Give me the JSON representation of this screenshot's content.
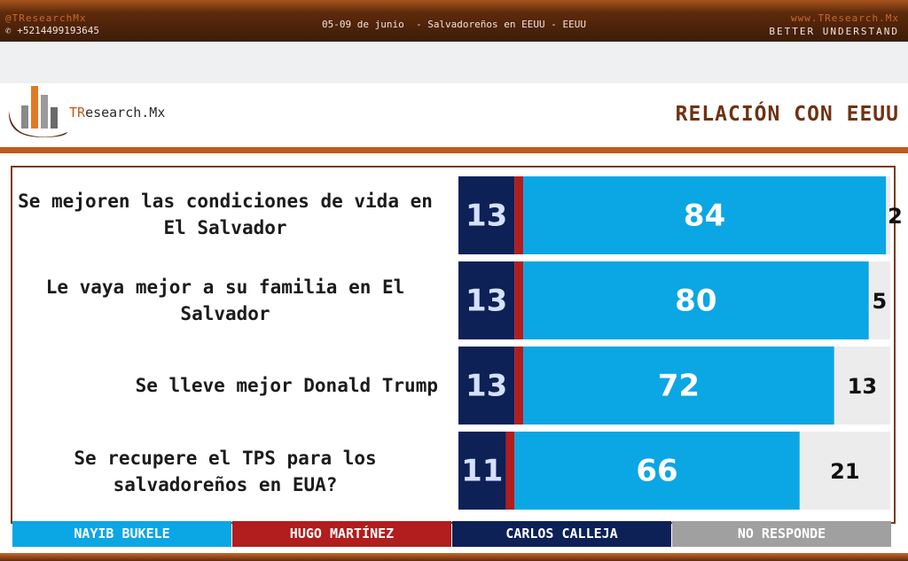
{
  "header": {
    "handle": "@TResearchMx",
    "phone": "+5214499193645",
    "center_text": "05-09 de junio  - Salvadoreños en EEUU - EEUU",
    "website": "www.TResearch.Mx",
    "tagline": "BETTER UNDERSTAND"
  },
  "brand": {
    "logo_prefix": "TR",
    "logo_suffix": "esearch.Mx"
  },
  "section_title": "RELACIÓN CON EEUU",
  "chart_data": {
    "type": "bar",
    "orientation": "horizontal",
    "stacked": true,
    "normalized_to": 100,
    "categories": [
      "Se mejoren las condiciones de vida en El Salvador",
      "Le vaya mejor a su familia en El Salvador",
      "Se lleve mejor Donald Trump",
      "Se recupere el TPS para los salvadoreños en EUA?"
    ],
    "series": [
      {
        "name": "CARLOS CALLEJA",
        "color": "#0d2157",
        "values": [
          13,
          13,
          13,
          11
        ]
      },
      {
        "name": "HUGO MARTÍNEZ",
        "color": "#b21d1d",
        "values": [
          2,
          2,
          2,
          2
        ]
      },
      {
        "name": "NAYIB BUKELE",
        "color": "#0ba6e4",
        "values": [
          84,
          80,
          72,
          66
        ]
      },
      {
        "name": "NO RESPONDE",
        "color": "#ececec",
        "values": [
          2,
          5,
          13,
          21
        ]
      }
    ],
    "legend_order": [
      "NAYIB BUKELE",
      "HUGO MARTÍNEZ",
      "CARLOS CALLEJA",
      "NO RESPONDE"
    ],
    "legend_colors": [
      "#0ba6e4",
      "#b21d1d",
      "#0d2157",
      "#a0a0a0"
    ],
    "legend_position": "bottom",
    "grid": false
  }
}
